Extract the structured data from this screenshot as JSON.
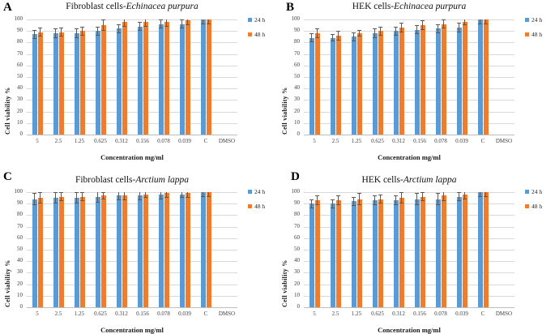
{
  "colors": {
    "series_24h": "#5B9BD5",
    "series_48h": "#ED7D31",
    "error_bar": "#595959",
    "gridline": "#D9D9D9",
    "axis_line": "#BFBFBF"
  },
  "legend": {
    "items": [
      {
        "label": "24 h",
        "color": "#5B9BD5"
      },
      {
        "label": "48 h",
        "color": "#ED7D31"
      }
    ]
  },
  "axes": {
    "y_label": "Cell viability %",
    "x_label": "Concentration mg/ml",
    "y_ticks": [
      0,
      10,
      20,
      30,
      40,
      50,
      60,
      70,
      80,
      90,
      100
    ],
    "ylim": [
      0,
      100
    ]
  },
  "chart_data": [
    {
      "panel": "A",
      "type": "bar",
      "title_plain": "Fibroblast cells-",
      "title_italic": "Echinacea purpura",
      "xlabel": "Concentration mg/ml",
      "ylabel": "Cell viability %",
      "ylim": [
        0,
        100
      ],
      "grid": true,
      "legend_position": "right-top",
      "categories": [
        "5",
        "2.5",
        "1.25",
        "0.625",
        "0.312",
        "0.156",
        "0.078",
        "0.039",
        "C",
        "DMSO"
      ],
      "series": [
        {
          "name": "24 h",
          "color": "#5B9BD5",
          "values": [
            87,
            88,
            88,
            90,
            92,
            94,
            96,
            96,
            100,
            0
          ],
          "errors": [
            4,
            4,
            4,
            4,
            4,
            4,
            4,
            4,
            4,
            0
          ]
        },
        {
          "name": "48 h",
          "color": "#ED7D31",
          "values": [
            89,
            89,
            90,
            95,
            98,
            98,
            98,
            99,
            100,
            0
          ],
          "errors": [
            4,
            4,
            4,
            5,
            4,
            4,
            4,
            4,
            4,
            0
          ]
        }
      ]
    },
    {
      "panel": "B",
      "type": "bar",
      "title_plain": "HEK cells-",
      "title_italic": "Echinacea purpura",
      "xlabel": "Concentration mg/ml",
      "ylabel": "Cell viability %",
      "ylim": [
        0,
        100
      ],
      "grid": true,
      "legend_position": "right-top",
      "categories": [
        "5",
        "2.5",
        "1.25",
        "0.625",
        "0.312",
        "0.156",
        "0.078",
        "0.039",
        "C",
        "DMSO"
      ],
      "series": [
        {
          "name": "24 h",
          "color": "#5B9BD5",
          "values": [
            84,
            84,
            85,
            88,
            90,
            91,
            92,
            93,
            100,
            0
          ],
          "errors": [
            4,
            3,
            4,
            4,
            4,
            4,
            4,
            4,
            4,
            0
          ]
        },
        {
          "name": "48 h",
          "color": "#ED7D31",
          "values": [
            88,
            86,
            88,
            90,
            93,
            95,
            96,
            98,
            100,
            0
          ],
          "errors": [
            4,
            4,
            3,
            4,
            4,
            4,
            4,
            3,
            4,
            0
          ]
        }
      ]
    },
    {
      "panel": "C",
      "type": "bar",
      "title_plain": "Fibroblast cells-",
      "title_italic": "Arctium lappa",
      "xlabel": "Concentration mg/ml",
      "ylabel": "Cell viability %",
      "ylim": [
        0,
        100
      ],
      "grid": true,
      "legend_position": "right-top",
      "categories": [
        "5",
        "2.5",
        "1.25",
        "0.625",
        "0.312",
        "0.156",
        "0.078",
        "0.039",
        "C",
        "DMSO"
      ],
      "series": [
        {
          "name": "24 h",
          "color": "#5B9BD5",
          "values": [
            94,
            95,
            95,
            96,
            97,
            97,
            98,
            98,
            100,
            0
          ],
          "errors": [
            5,
            5,
            5,
            5,
            4,
            4,
            4,
            3,
            4,
            0
          ]
        },
        {
          "name": "48 h",
          "color": "#ED7D31",
          "values": [
            95,
            96,
            96,
            97,
            97,
            98,
            99,
            99,
            100,
            0
          ],
          "errors": [
            5,
            4,
            4,
            3,
            4,
            3,
            4,
            4,
            4,
            0
          ]
        }
      ]
    },
    {
      "panel": "D",
      "type": "bar",
      "title_plain": "HEK cells-",
      "title_italic": "Arctium lappa",
      "xlabel": "Concentration mg/ml",
      "ylabel": "Cell viability %",
      "ylim": [
        0,
        100
      ],
      "grid": true,
      "legend_position": "right-top",
      "categories": [
        "5",
        "2.5",
        "1.25",
        "0.625",
        "0.312",
        "0.156",
        "0.078",
        "0.039",
        "C",
        "DMSO"
      ],
      "series": [
        {
          "name": "24 h",
          "color": "#5B9BD5",
          "values": [
            90,
            90,
            92,
            93,
            93,
            94,
            94,
            96,
            100,
            0
          ],
          "errors": [
            4,
            4,
            4,
            4,
            4,
            5,
            5,
            4,
            4,
            0
          ]
        },
        {
          "name": "48 h",
          "color": "#ED7D31",
          "values": [
            93,
            93,
            94,
            94,
            95,
            96,
            97,
            98,
            100,
            0
          ],
          "errors": [
            4,
            4,
            5,
            4,
            5,
            4,
            5,
            4,
            4,
            0
          ]
        }
      ]
    }
  ]
}
